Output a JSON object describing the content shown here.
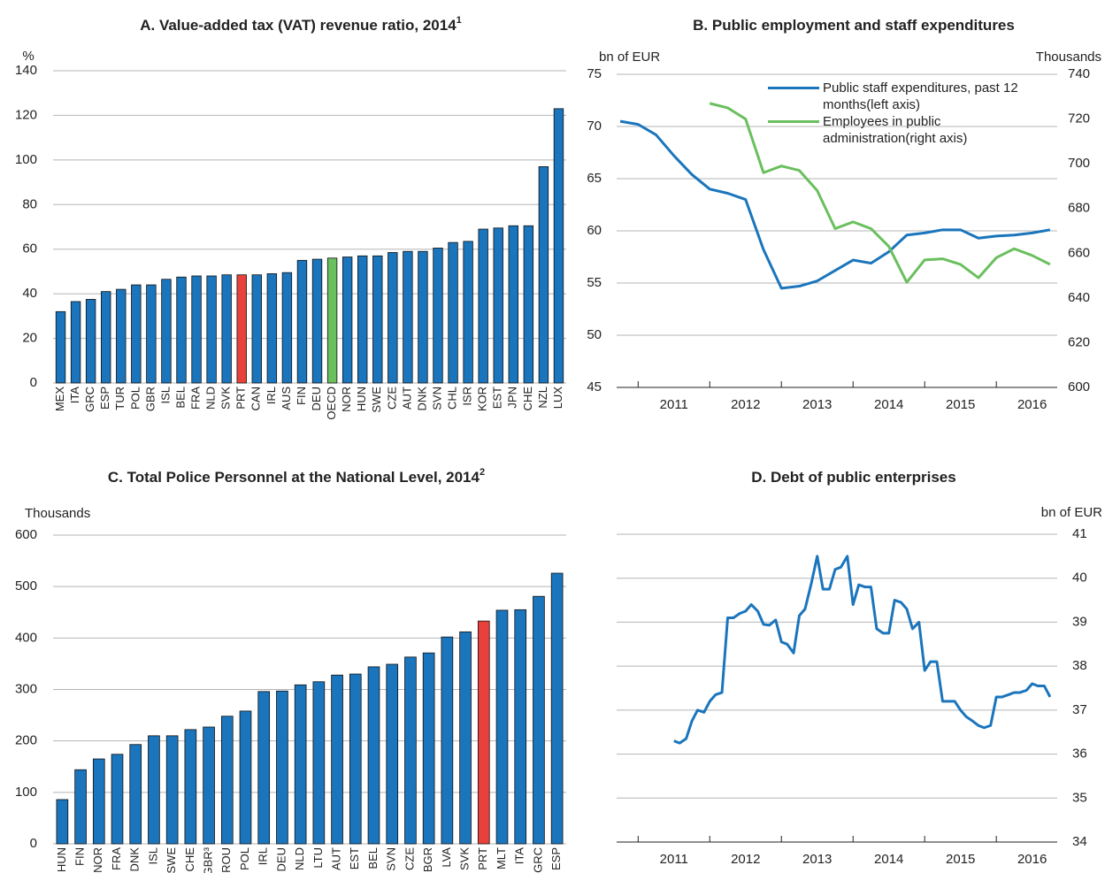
{
  "chart_data": [
    {
      "type": "bar",
      "title": "A. Value-added tax (VAT) revenue ratio, 2014",
      "title_superscript": "1",
      "y_label": "%",
      "categories": [
        "MEX",
        "ITA",
        "GRC",
        "ESP",
        "TUR",
        "POL",
        "GBR",
        "ISL",
        "BEL",
        "FRA",
        "NLD",
        "SVK",
        "PRT",
        "CAN",
        "IRL",
        "AUS",
        "FIN",
        "DEU",
        "OECD",
        "NOR",
        "HUN",
        "SWE",
        "CZE",
        "AUT",
        "DNK",
        "SVN",
        "CHL",
        "ISR",
        "KOR",
        "EST",
        "JPN",
        "CHE",
        "NZL",
        "LUX"
      ],
      "values": [
        32,
        36.5,
        37.5,
        41,
        42,
        44,
        44,
        46.5,
        47.5,
        48,
        48,
        48.5,
        48.5,
        48.5,
        49,
        49.5,
        55,
        55.5,
        56,
        56.5,
        57,
        57,
        58.5,
        59,
        59,
        60.5,
        63,
        63.5,
        69,
        69.5,
        70.5,
        70.5,
        97,
        123
      ],
      "colors": [
        "#1a75bc",
        "#1a75bc",
        "#1a75bc",
        "#1a75bc",
        "#1a75bc",
        "#1a75bc",
        "#1a75bc",
        "#1a75bc",
        "#1a75bc",
        "#1a75bc",
        "#1a75bc",
        "#1a75bc",
        "#e8413c",
        "#1a75bc",
        "#1a75bc",
        "#1a75bc",
        "#1a75bc",
        "#1a75bc",
        "#6abf5e",
        "#1a75bc",
        "#1a75bc",
        "#1a75bc",
        "#1a75bc",
        "#1a75bc",
        "#1a75bc",
        "#1a75bc",
        "#1a75bc",
        "#1a75bc",
        "#1a75bc",
        "#1a75bc",
        "#1a75bc",
        "#1a75bc",
        "#1a75bc",
        "#1a75bc"
      ],
      "ylim": [
        0,
        140
      ],
      "yticks": [
        0,
        20,
        40,
        60,
        80,
        100,
        120,
        140
      ],
      "grid": true
    },
    {
      "type": "line",
      "title": "B. Public employment and staff expenditures",
      "y_label": "bn of EUR",
      "y2_label": "Thousands",
      "ylim": [
        45,
        75
      ],
      "yticks": [
        45,
        50,
        55,
        60,
        65,
        70,
        75
      ],
      "y2lim": [
        600,
        740
      ],
      "y2ticks": [
        600,
        620,
        640,
        660,
        680,
        700,
        720,
        740
      ],
      "xlim": [
        2010.7,
        2016.85
      ],
      "xticks": [
        2011,
        2012,
        2013,
        2014,
        2015,
        2016
      ],
      "grid": true,
      "legend": "top-right",
      "series": [
        {
          "name": "Public staff expenditures, past 12 months(left axis)",
          "color": "#1a75bc",
          "x": [
            2010.75,
            2011,
            2011.25,
            2011.5,
            2011.75,
            2012,
            2012.25,
            2012.5,
            2012.75,
            2013,
            2013.25,
            2013.5,
            2013.75,
            2014,
            2014.25,
            2014.5,
            2014.75,
            2015,
            2015.25,
            2015.5,
            2015.75,
            2016,
            2016.25,
            2016.5,
            2016.75
          ],
          "values": [
            70.5,
            70.2,
            69.2,
            67.2,
            65.4,
            64.0,
            63.6,
            63.0,
            58.2,
            54.5,
            54.7,
            55.2,
            56.2,
            57.2,
            56.9,
            58.0,
            59.6,
            59.8,
            60.1,
            60.1,
            59.3,
            59.5,
            59.6,
            59.8,
            60.1
          ]
        },
        {
          "name": "Employees in public administration(right axis)",
          "color": "#6abf5e",
          "axis": "y2",
          "x": [
            2012,
            2012.25,
            2012.5,
            2012.75,
            2013,
            2013.25,
            2013.5,
            2013.75,
            2014,
            2014.25,
            2014.5,
            2014.75,
            2015,
            2015.25,
            2015.5,
            2015.75,
            2016,
            2016.25,
            2016.5,
            2016.75
          ],
          "values": [
            727,
            725,
            720,
            696,
            699,
            697,
            688,
            671,
            674,
            671,
            663,
            647,
            657,
            657.5,
            655,
            649,
            658,
            662,
            659,
            655
          ]
        }
      ]
    },
    {
      "type": "bar",
      "title": "C. Total Police Personnel at the National Level, 2014",
      "title_superscript": "2",
      "y_label": "Thousands",
      "categories": [
        "HUN",
        "FIN",
        "NOR",
        "FRA",
        "DNK",
        "ISL",
        "SWE",
        "CHE",
        "GBR³",
        "ROU",
        "POL",
        "IRL",
        "DEU",
        "NLD",
        "LTU",
        "AUT",
        "EST",
        "BEL",
        "SVN",
        "CZE",
        "BGR",
        "LVA",
        "SVK",
        "PRT",
        "MLT",
        "ITA",
        "GRC",
        "ESP"
      ],
      "values": [
        86,
        144,
        165,
        174,
        193,
        210,
        210,
        222,
        227,
        248,
        258,
        296,
        297,
        309,
        315,
        328,
        330,
        344,
        349,
        363,
        371,
        402,
        412,
        433,
        454,
        455,
        481,
        526
      ],
      "colors": [
        "#1a75bc",
        "#1a75bc",
        "#1a75bc",
        "#1a75bc",
        "#1a75bc",
        "#1a75bc",
        "#1a75bc",
        "#1a75bc",
        "#1a75bc",
        "#1a75bc",
        "#1a75bc",
        "#1a75bc",
        "#1a75bc",
        "#1a75bc",
        "#1a75bc",
        "#1a75bc",
        "#1a75bc",
        "#1a75bc",
        "#1a75bc",
        "#1a75bc",
        "#1a75bc",
        "#1a75bc",
        "#1a75bc",
        "#e8413c",
        "#1a75bc",
        "#1a75bc",
        "#1a75bc",
        "#1a75bc"
      ],
      "ylim": [
        0,
        600
      ],
      "yticks": [
        0,
        100,
        200,
        300,
        400,
        500,
        600
      ],
      "grid": true
    },
    {
      "type": "line",
      "title": "D. Debt of public enterprises",
      "y_label": "bn of EUR",
      "yaxis_side": "right",
      "ylim": [
        34,
        41
      ],
      "yticks": [
        34,
        35,
        36,
        37,
        38,
        39,
        40,
        41
      ],
      "xlim": [
        2010.7,
        2016.85
      ],
      "xticks": [
        2011,
        2012,
        2013,
        2014,
        2015,
        2016
      ],
      "grid": true,
      "series": [
        {
          "color": "#1a75bc",
          "x": [
            2011.5,
            2011.58,
            2011.67,
            2011.75,
            2011.83,
            2011.92,
            2012,
            2012.08,
            2012.17,
            2012.25,
            2012.33,
            2012.42,
            2012.5,
            2012.58,
            2012.67,
            2012.75,
            2012.83,
            2012.92,
            2013,
            2013.08,
            2013.17,
            2013.25,
            2013.33,
            2013.42,
            2013.5,
            2013.58,
            2013.67,
            2013.75,
            2013.83,
            2013.92,
            2014,
            2014.08,
            2014.17,
            2014.25,
            2014.33,
            2014.42,
            2014.5,
            2014.58,
            2014.67,
            2014.75,
            2014.83,
            2014.92,
            2015,
            2015.08,
            2015.17,
            2015.25,
            2015.33,
            2015.42,
            2015.5,
            2015.58,
            2015.67,
            2015.75,
            2015.83,
            2015.92,
            2016,
            2016.08,
            2016.17,
            2016.25,
            2016.33,
            2016.42,
            2016.5,
            2016.58,
            2016.67,
            2016.75
          ],
          "values": [
            36.3,
            36.25,
            36.35,
            36.75,
            37.0,
            36.95,
            37.2,
            37.35,
            37.4,
            39.1,
            39.1,
            39.2,
            39.25,
            39.4,
            39.25,
            38.95,
            38.93,
            39.05,
            38.55,
            38.5,
            38.3,
            39.15,
            39.3,
            39.9,
            40.5,
            39.75,
            39.75,
            40.2,
            40.25,
            40.5,
            39.4,
            39.85,
            39.8,
            39.8,
            38.85,
            38.75,
            38.75,
            39.5,
            39.45,
            39.3,
            38.85,
            39.0,
            37.9,
            38.1,
            38.1,
            37.2,
            37.2,
            37.2,
            37.0,
            36.85,
            36.75,
            36.65,
            36.6,
            36.65,
            37.3,
            37.3,
            37.35,
            37.4,
            37.4,
            37.45,
            37.6,
            37.55,
            37.55,
            37.3
          ]
        }
      ]
    }
  ]
}
